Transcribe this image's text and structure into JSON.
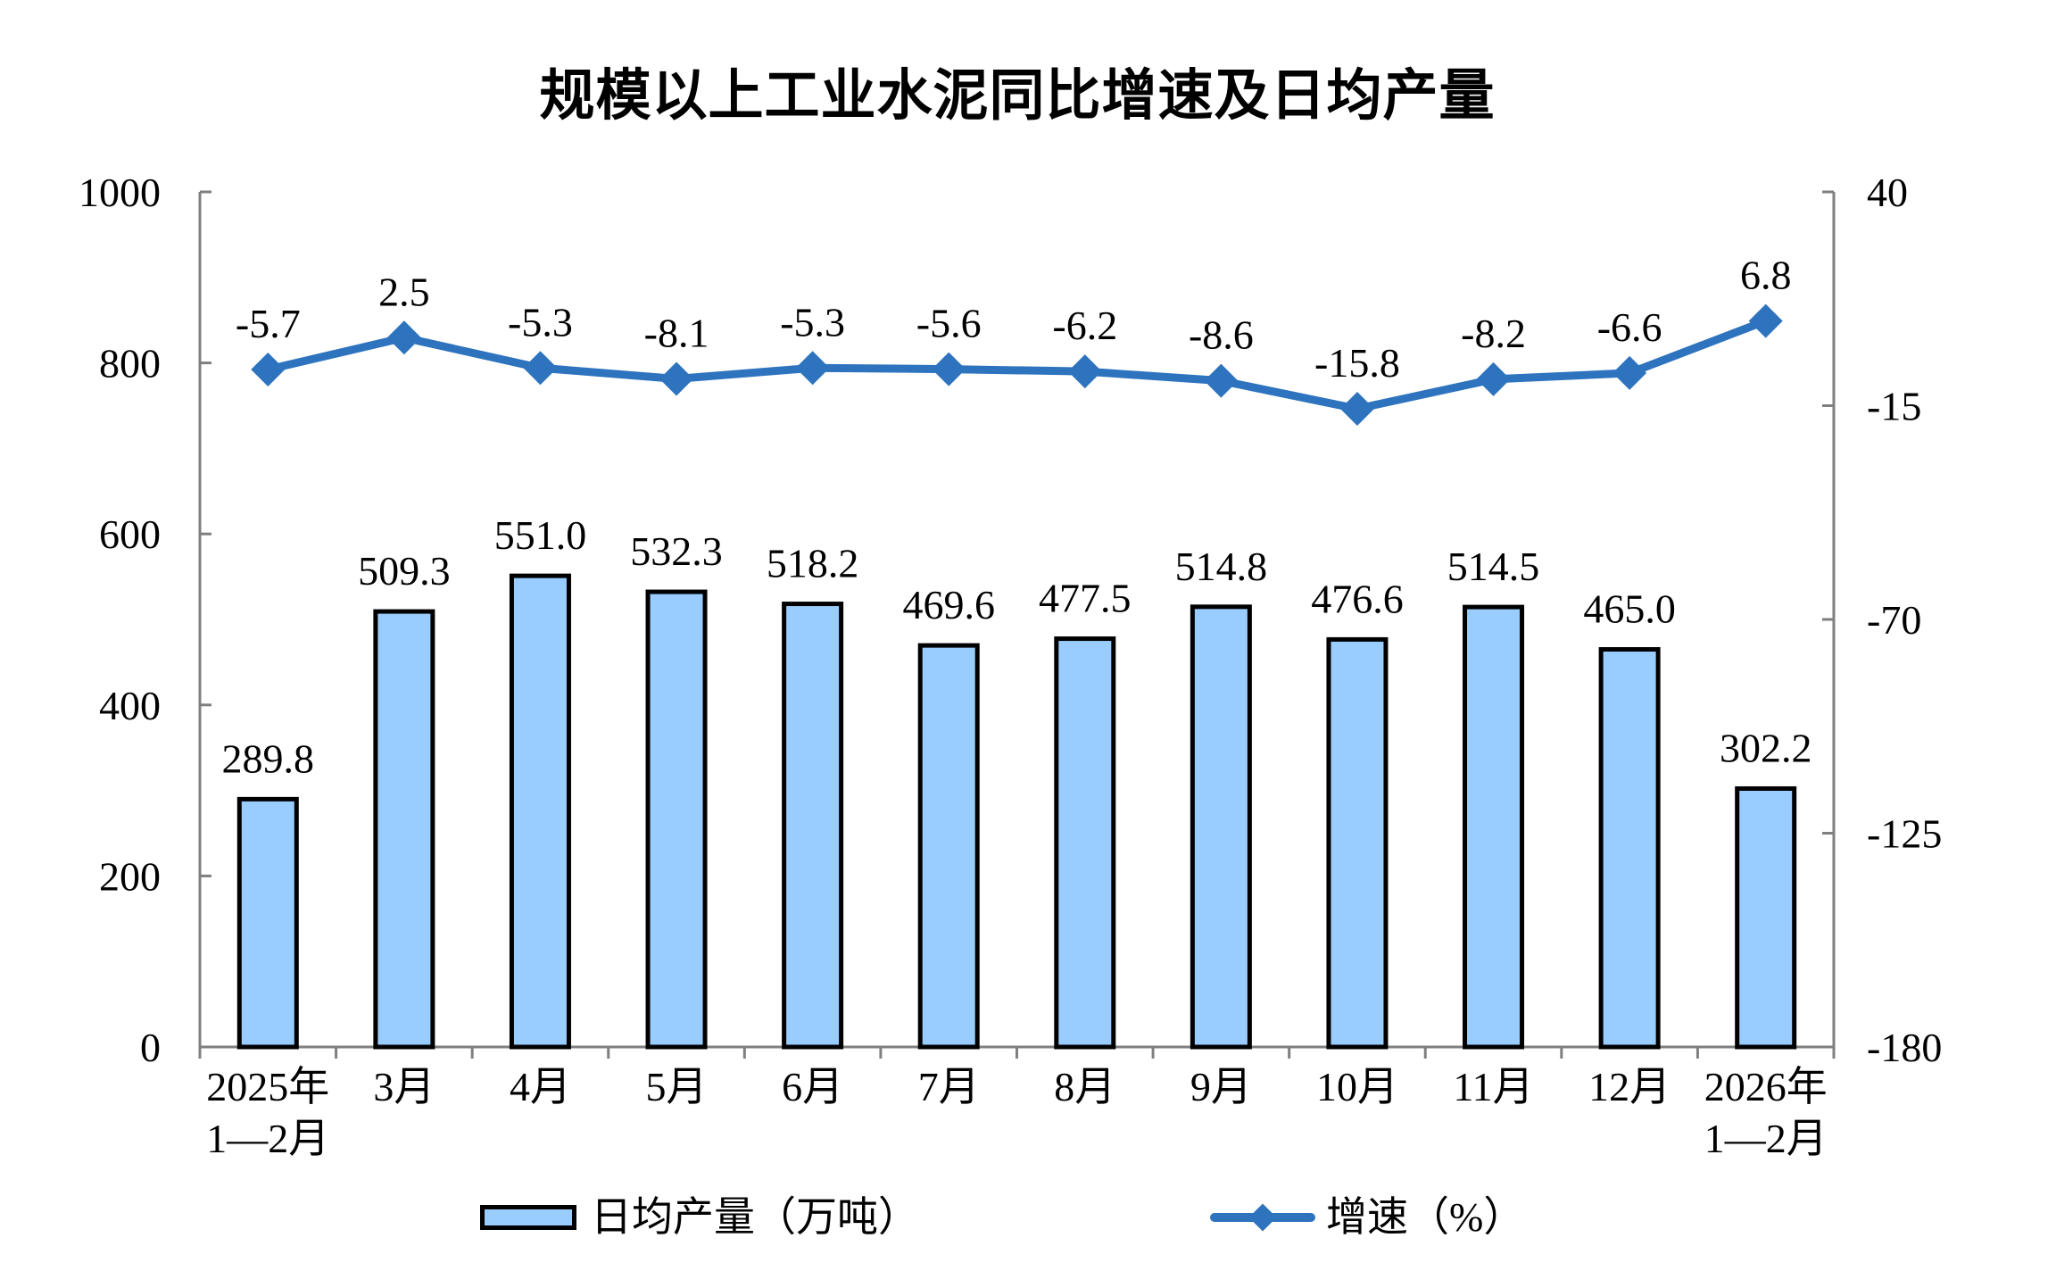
{
  "title": "规模以上工业水泥同比增速及日均产量",
  "colors": {
    "bar_fill": "#99CCFF",
    "bar_border": "#000000",
    "line": "#2D73BE",
    "axis": "#7F7F7F",
    "text": "#000000"
  },
  "chart_data": {
    "type": "combo",
    "title": "规模以上工业水泥同比增速及日均产量",
    "grid": false,
    "legend_position": "bottom",
    "categories": [
      "2025年\n1—2月",
      "3月",
      "4月",
      "5月",
      "6月",
      "7月",
      "8月",
      "9月",
      "10月",
      "11月",
      "12月",
      "2026年\n1—2月"
    ],
    "series": [
      {
        "name": "日均产量（万吨）",
        "type": "bar",
        "axis": "left",
        "values": [
          289.8,
          509.3,
          551.0,
          532.3,
          518.2,
          469.6,
          477.5,
          514.8,
          476.6,
          514.5,
          465.0,
          302.2
        ]
      },
      {
        "name": "增速（%）",
        "type": "line",
        "axis": "right",
        "values": [
          -5.7,
          2.5,
          -5.3,
          -8.1,
          -5.3,
          -5.6,
          -6.2,
          -8.6,
          -15.8,
          -8.2,
          -6.6,
          6.8
        ]
      }
    ],
    "left_axis": {
      "min": 0,
      "max": 1000,
      "ticks": [
        1000,
        800,
        600,
        400,
        200,
        0
      ]
    },
    "right_axis": {
      "min": -180,
      "max": 40,
      "ticks": [
        40,
        -15,
        -70,
        -125,
        -180
      ]
    }
  }
}
